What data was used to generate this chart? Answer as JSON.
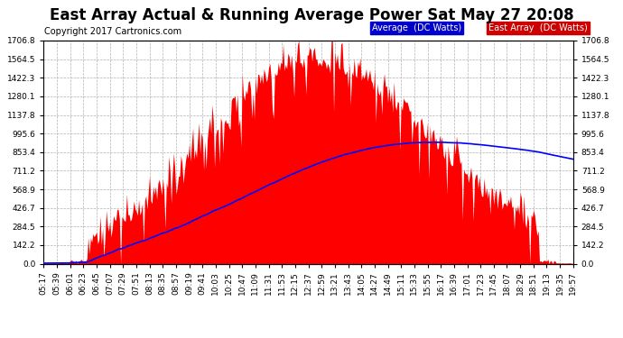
{
  "title": "East Array Actual & Running Average Power Sat May 27 20:08",
  "copyright": "Copyright 2017 Cartronics.com",
  "legend_labels": [
    "Average  (DC Watts)",
    "East Array  (DC Watts)"
  ],
  "legend_bg_colors": [
    "#0000cc",
    "#cc0000"
  ],
  "background_color": "#ffffff",
  "plot_bg_color": "#ffffff",
  "grid_color": "#b0b0b0",
  "ytick_labels": [
    "0.0",
    "142.2",
    "284.5",
    "426.7",
    "568.9",
    "711.2",
    "853.4",
    "995.6",
    "1137.8",
    "1280.1",
    "1422.3",
    "1564.5",
    "1706.8"
  ],
  "ytick_values": [
    0.0,
    142.2,
    284.5,
    426.7,
    568.9,
    711.2,
    853.4,
    995.6,
    1137.8,
    1280.1,
    1422.3,
    1564.5,
    1706.8
  ],
  "ymax": 1706.8,
  "ymin": 0.0,
  "fill_color": "#ff0000",
  "line_color": "#0000ff",
  "line_width": 1.2,
  "title_fontsize": 12,
  "tick_fontsize": 6.5,
  "copyright_fontsize": 7
}
